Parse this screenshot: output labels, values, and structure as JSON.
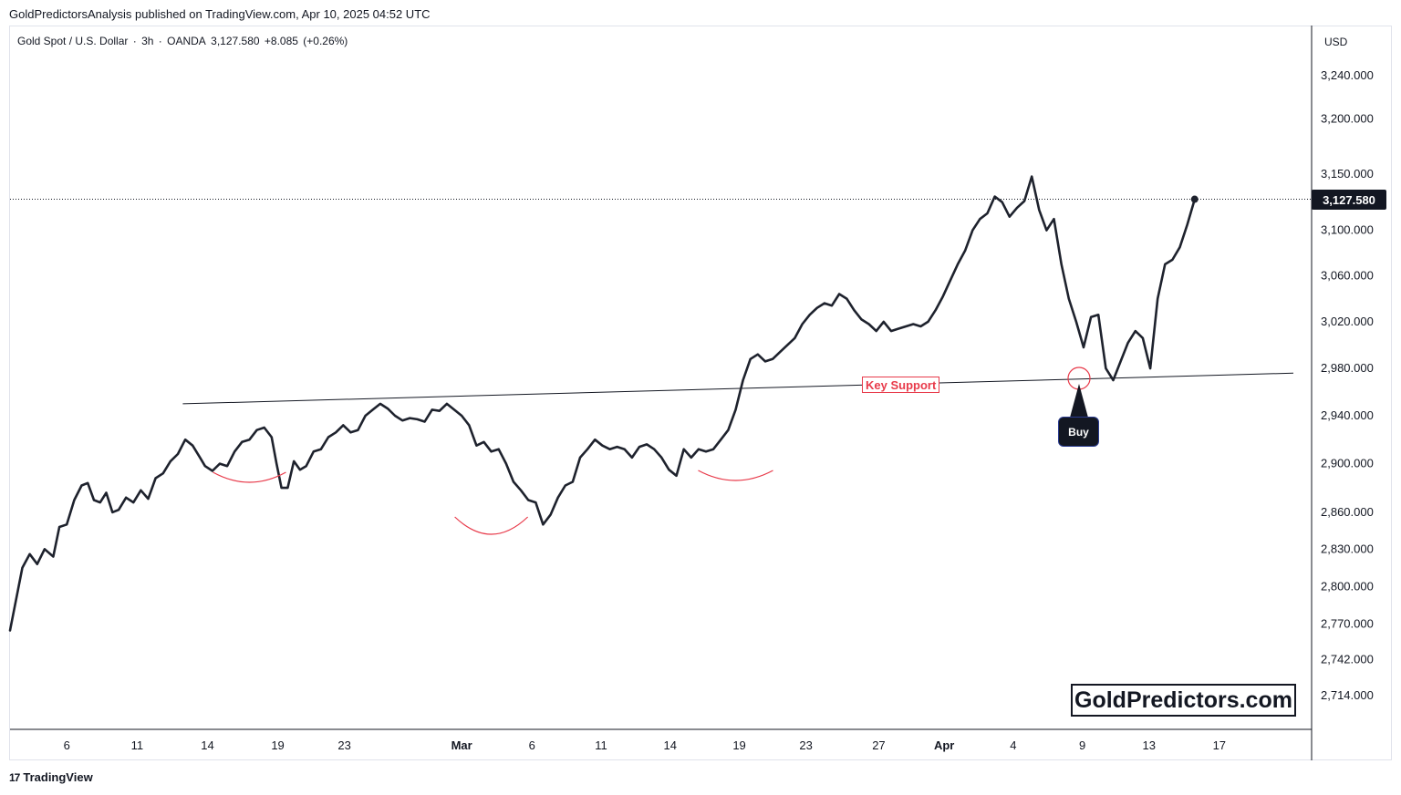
{
  "header": {
    "published": "GoldPredictorsAnalysis published on TradingView.com, Apr 10, 2025 04:52 UTC"
  },
  "symbol": {
    "name": "Gold Spot / U.S. Dollar",
    "interval": "3h",
    "exchange": "OANDA",
    "last": "3,127.580",
    "change": "+8.085",
    "change_pct": "(+0.26%)"
  },
  "currency": "USD",
  "price_badge": "3,127.580",
  "watermark": "GoldPredictors.com",
  "annotations": {
    "key_support": "Key Support",
    "buy": "Buy"
  },
  "footer": {
    "brand": "TradingView"
  },
  "colors": {
    "line": "#1e222d",
    "support_line": "#131722",
    "annotation_red": "#e83a4a",
    "axis_text": "#131722"
  },
  "chart_data": {
    "type": "line",
    "title": "Gold Spot / U.S. Dollar · 3h · OANDA",
    "xlabel": "",
    "ylabel": "",
    "y_scale": "log",
    "ylim": [
      2690,
      3270
    ],
    "x_ticks": [
      "6",
      "11",
      "14",
      "19",
      "23",
      "Mar",
      "6",
      "11",
      "14",
      "19",
      "23",
      "27",
      "Apr",
      "4",
      "9",
      "13",
      "17"
    ],
    "y_ticks": [
      "3,240.000",
      "3,200.000",
      "3,150.000",
      "3,100.000",
      "3,060.000",
      "3,020.000",
      "2,980.000",
      "2,940.000",
      "2,900.000",
      "2,860.000",
      "2,830.000",
      "2,800.000",
      "2,770.000",
      "2,742.000",
      "2,714.000"
    ],
    "y_tick_values": [
      3240,
      3200,
      3150,
      3100,
      3060,
      3020,
      2980,
      2940,
      2900,
      2860,
      2830,
      2800,
      2770,
      2742,
      2714
    ],
    "last_value": 3127.58,
    "series": [
      {
        "name": "",
        "points": [
          [
            0.0,
            2765
          ],
          [
            1.0,
            2815
          ],
          [
            1.6,
            2826
          ],
          [
            2.2,
            2818
          ],
          [
            2.8,
            2830
          ],
          [
            3.5,
            2824
          ],
          [
            4.0,
            2848
          ],
          [
            4.6,
            2850
          ],
          [
            5.2,
            2870
          ],
          [
            5.8,
            2882
          ],
          [
            6.3,
            2884
          ],
          [
            6.8,
            2870
          ],
          [
            7.3,
            2868
          ],
          [
            7.8,
            2876
          ],
          [
            8.3,
            2860
          ],
          [
            8.8,
            2862
          ],
          [
            9.4,
            2872
          ],
          [
            10.0,
            2868
          ],
          [
            10.6,
            2878
          ],
          [
            11.2,
            2871
          ],
          [
            11.8,
            2888
          ],
          [
            12.4,
            2892
          ],
          [
            13.0,
            2902
          ],
          [
            13.6,
            2908
          ],
          [
            14.2,
            2920
          ],
          [
            14.8,
            2915
          ],
          [
            15.4,
            2905
          ],
          [
            15.8,
            2898
          ],
          [
            16.4,
            2894
          ],
          [
            17.0,
            2900
          ],
          [
            17.6,
            2898
          ],
          [
            18.2,
            2910
          ],
          [
            18.8,
            2918
          ],
          [
            19.4,
            2920
          ],
          [
            20.0,
            2928
          ],
          [
            20.6,
            2930
          ],
          [
            21.2,
            2922
          ],
          [
            21.6,
            2900
          ],
          [
            22.0,
            2880
          ],
          [
            22.5,
            2880
          ],
          [
            23.0,
            2902
          ],
          [
            23.5,
            2895
          ],
          [
            24.0,
            2898
          ],
          [
            24.6,
            2910
          ],
          [
            25.2,
            2912
          ],
          [
            25.8,
            2922
          ],
          [
            26.4,
            2926
          ],
          [
            27.0,
            2932
          ],
          [
            27.6,
            2926
          ],
          [
            28.2,
            2928
          ],
          [
            28.8,
            2940
          ],
          [
            29.4,
            2945
          ],
          [
            30.0,
            2950
          ],
          [
            30.6,
            2946
          ],
          [
            31.2,
            2940
          ],
          [
            31.8,
            2936
          ],
          [
            32.4,
            2938
          ],
          [
            33.0,
            2937
          ],
          [
            33.6,
            2935
          ],
          [
            34.2,
            2945
          ],
          [
            34.8,
            2944
          ],
          [
            35.4,
            2950
          ],
          [
            36.0,
            2945
          ],
          [
            36.6,
            2940
          ],
          [
            37.2,
            2932
          ],
          [
            37.8,
            2915
          ],
          [
            38.4,
            2918
          ],
          [
            39.0,
            2910
          ],
          [
            39.6,
            2912
          ],
          [
            40.2,
            2900
          ],
          [
            40.8,
            2885
          ],
          [
            41.4,
            2878
          ],
          [
            42.0,
            2870
          ],
          [
            42.6,
            2868
          ],
          [
            43.2,
            2850
          ],
          [
            43.8,
            2858
          ],
          [
            44.4,
            2872
          ],
          [
            45.0,
            2882
          ],
          [
            45.6,
            2885
          ],
          [
            46.2,
            2905
          ],
          [
            46.8,
            2912
          ],
          [
            47.4,
            2920
          ],
          [
            48.0,
            2915
          ],
          [
            48.6,
            2912
          ],
          [
            49.2,
            2914
          ],
          [
            49.8,
            2912
          ],
          [
            50.4,
            2905
          ],
          [
            51.0,
            2914
          ],
          [
            51.6,
            2916
          ],
          [
            52.2,
            2912
          ],
          [
            52.8,
            2905
          ],
          [
            53.4,
            2895
          ],
          [
            54.0,
            2890
          ],
          [
            54.6,
            2912
          ],
          [
            55.2,
            2905
          ],
          [
            55.8,
            2912
          ],
          [
            56.4,
            2910
          ],
          [
            57.0,
            2912
          ],
          [
            57.6,
            2920
          ],
          [
            58.2,
            2928
          ],
          [
            58.8,
            2945
          ],
          [
            59.4,
            2970
          ],
          [
            60.0,
            2988
          ],
          [
            60.6,
            2992
          ],
          [
            61.2,
            2986
          ],
          [
            61.8,
            2988
          ],
          [
            62.4,
            2994
          ],
          [
            63.0,
            3000
          ],
          [
            63.6,
            3006
          ],
          [
            64.2,
            3018
          ],
          [
            64.8,
            3026
          ],
          [
            65.4,
            3032
          ],
          [
            66.0,
            3036
          ],
          [
            66.6,
            3034
          ],
          [
            67.2,
            3044
          ],
          [
            67.8,
            3040
          ],
          [
            68.4,
            3030
          ],
          [
            69.0,
            3022
          ],
          [
            69.6,
            3018
          ],
          [
            70.2,
            3012
          ],
          [
            70.8,
            3020
          ],
          [
            71.4,
            3012
          ],
          [
            72.0,
            3014
          ],
          [
            72.6,
            3016
          ],
          [
            73.2,
            3018
          ],
          [
            73.8,
            3016
          ],
          [
            74.4,
            3020
          ],
          [
            75.0,
            3030
          ],
          [
            75.6,
            3042
          ],
          [
            76.2,
            3056
          ],
          [
            76.8,
            3070
          ],
          [
            77.4,
            3082
          ],
          [
            78.0,
            3100
          ],
          [
            78.6,
            3110
          ],
          [
            79.2,
            3115
          ],
          [
            79.8,
            3130
          ],
          [
            80.4,
            3125
          ],
          [
            81.0,
            3112
          ],
          [
            81.6,
            3120
          ],
          [
            82.2,
            3126
          ],
          [
            82.8,
            3148
          ],
          [
            83.4,
            3118
          ],
          [
            84.0,
            3100
          ],
          [
            84.6,
            3110
          ],
          [
            85.2,
            3070
          ],
          [
            85.8,
            3040
          ],
          [
            86.4,
            3020
          ],
          [
            87.0,
            2998
          ],
          [
            87.6,
            3024
          ],
          [
            88.2,
            3026
          ],
          [
            88.8,
            2980
          ],
          [
            89.4,
            2970
          ],
          [
            90.0,
            2986
          ],
          [
            90.6,
            3002
          ],
          [
            91.2,
            3012
          ],
          [
            91.8,
            3006
          ],
          [
            92.4,
            2980
          ],
          [
            93.0,
            3040
          ],
          [
            93.6,
            3070
          ],
          [
            94.2,
            3074
          ],
          [
            94.8,
            3085
          ],
          [
            95.4,
            3105
          ],
          [
            96.0,
            3127.58
          ]
        ]
      }
    ],
    "support_line": {
      "label": "Key Support",
      "from": [
        14.0,
        2950
      ],
      "to": [
        104.0,
        2976
      ]
    }
  }
}
